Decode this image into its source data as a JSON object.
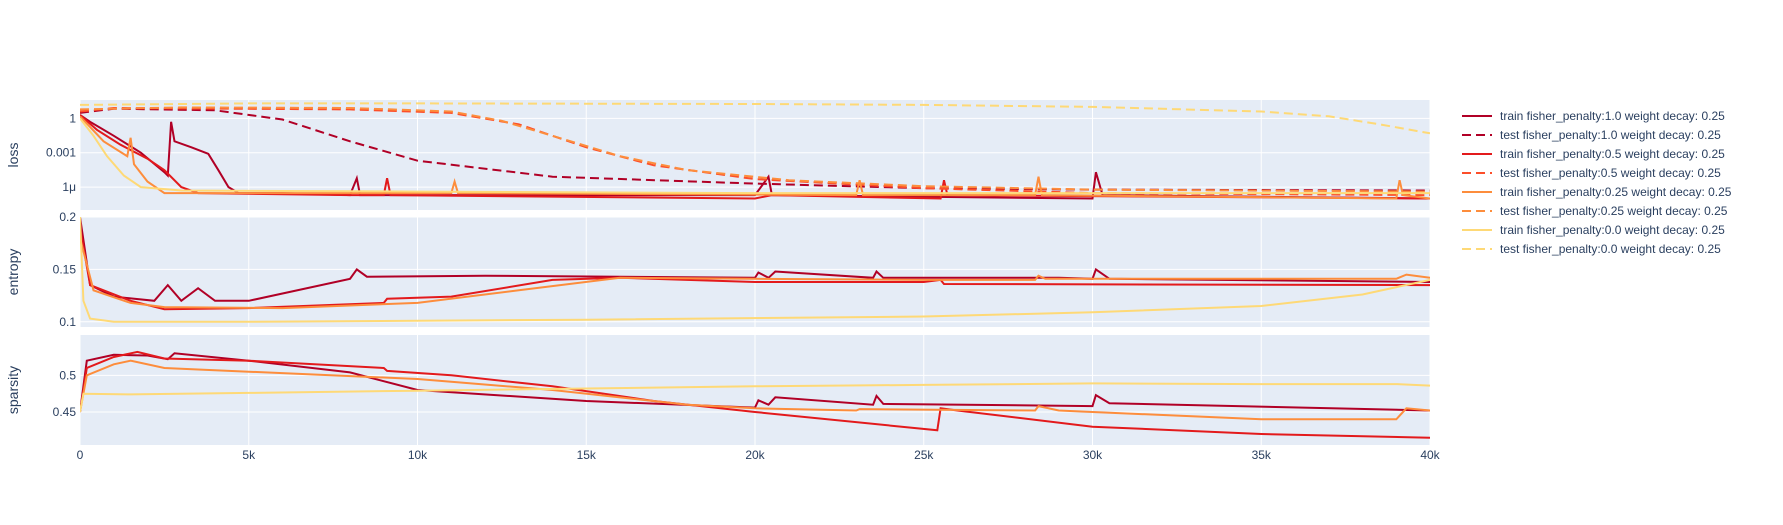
{
  "chart_data": {
    "type": "line",
    "x_ticks": [
      {
        "value": 0,
        "label": "0"
      },
      {
        "value": 5000,
        "label": "5k"
      },
      {
        "value": 10000,
        "label": "10k"
      },
      {
        "value": 15000,
        "label": "15k"
      },
      {
        "value": 20000,
        "label": "20k"
      },
      {
        "value": 25000,
        "label": "25k"
      },
      {
        "value": 30000,
        "label": "30k"
      },
      {
        "value": 35000,
        "label": "35k"
      },
      {
        "value": 40000,
        "label": "40k"
      }
    ],
    "xlim": [
      0,
      40000
    ],
    "grid": true,
    "legend_position": "right",
    "panels": [
      {
        "key": "loss",
        "ylabel": "loss",
        "yscale": "log",
        "ylim": [
          1e-08,
          40
        ],
        "y_ticks": [
          {
            "value": 1,
            "label": "1"
          },
          {
            "value": 0.001,
            "label": "0.001"
          },
          {
            "value": 1e-06,
            "label": "1μ"
          }
        ]
      },
      {
        "key": "entropy",
        "ylabel": "entropy",
        "yscale": "linear",
        "ylim": [
          0.095,
          0.2
        ],
        "y_ticks": [
          {
            "value": 0.2,
            "label": "0.2"
          },
          {
            "value": 0.15,
            "label": "0.15"
          },
          {
            "value": 0.1,
            "label": "0.1"
          }
        ]
      },
      {
        "key": "sparsity",
        "ylabel": "sparsity",
        "yscale": "linear",
        "ylim": [
          0.405,
          0.555
        ],
        "y_ticks": [
          {
            "value": 0.5,
            "label": "0.5"
          },
          {
            "value": 0.45,
            "label": "0.45"
          }
        ]
      }
    ],
    "series": [
      {
        "name": "train fisher_penalty:1.0 weight decay: 0.25",
        "color": "#b10026",
        "dash": "solid",
        "loss": [
          [
            0,
            2
          ],
          [
            300,
            0.5
          ],
          [
            1000,
            0.03
          ],
          [
            1800,
            0.001
          ],
          [
            2500,
            2e-05
          ],
          [
            2600,
            1e-05
          ],
          [
            2700,
            0.5
          ],
          [
            2800,
            0.01
          ],
          [
            3300,
            0.003
          ],
          [
            3800,
            0.0008
          ],
          [
            4100,
            3e-05
          ],
          [
            4400,
            1e-06
          ],
          [
            4700,
            3e-07
          ],
          [
            6000,
            3e-07
          ],
          [
            8000,
            2e-07
          ],
          [
            8200,
            6e-06
          ],
          [
            8300,
            2e-07
          ],
          [
            20000,
            2e-07
          ],
          [
            20400,
            8e-06
          ],
          [
            20500,
            2e-07
          ],
          [
            30000,
            1e-07
          ],
          [
            30100,
            2e-05
          ],
          [
            30300,
            2e-07
          ],
          [
            40000,
            1e-07
          ]
        ],
        "entropy": [
          [
            0,
            0.2
          ],
          [
            300,
            0.135
          ],
          [
            1000,
            0.124
          ],
          [
            2200,
            0.12
          ],
          [
            2600,
            0.135
          ],
          [
            3000,
            0.12
          ],
          [
            3500,
            0.132
          ],
          [
            4000,
            0.12
          ],
          [
            5000,
            0.12
          ],
          [
            8000,
            0.141
          ],
          [
            8200,
            0.15
          ],
          [
            8500,
            0.143
          ],
          [
            12000,
            0.144
          ],
          [
            20000,
            0.142
          ],
          [
            20100,
            0.147
          ],
          [
            20400,
            0.142
          ],
          [
            20600,
            0.148
          ],
          [
            23500,
            0.142
          ],
          [
            23600,
            0.148
          ],
          [
            23800,
            0.142
          ],
          [
            29000,
            0.142
          ],
          [
            30000,
            0.141
          ],
          [
            30100,
            0.15
          ],
          [
            30500,
            0.141
          ],
          [
            40000,
            0.138
          ]
        ],
        "sparsity": [
          [
            0,
            0.45
          ],
          [
            200,
            0.52
          ],
          [
            1000,
            0.528
          ],
          [
            2000,
            0.527
          ],
          [
            2600,
            0.522
          ],
          [
            2800,
            0.53
          ],
          [
            5000,
            0.52
          ],
          [
            8000,
            0.504
          ],
          [
            10000,
            0.48
          ],
          [
            15000,
            0.465
          ],
          [
            20000,
            0.456
          ],
          [
            20100,
            0.466
          ],
          [
            20400,
            0.46
          ],
          [
            20600,
            0.47
          ],
          [
            23500,
            0.46
          ],
          [
            23600,
            0.472
          ],
          [
            23800,
            0.461
          ],
          [
            30000,
            0.458
          ],
          [
            30100,
            0.473
          ],
          [
            30500,
            0.462
          ],
          [
            40000,
            0.452
          ]
        ]
      },
      {
        "name": "test fisher_penalty:1.0 weight decay: 0.25",
        "color": "#b10026",
        "dash": "dash",
        "loss": [
          [
            0,
            3
          ],
          [
            1000,
            7
          ],
          [
            4000,
            5
          ],
          [
            6000,
            0.8
          ],
          [
            8000,
            0.01
          ],
          [
            10000,
            0.0002
          ],
          [
            14000,
            8e-06
          ],
          [
            20000,
            2e-06
          ],
          [
            25000,
            8e-07
          ],
          [
            30000,
            6e-07
          ],
          [
            40000,
            5e-07
          ]
        ],
        "entropy": [],
        "sparsity": []
      },
      {
        "name": "train fisher_penalty:0.5 weight decay: 0.25",
        "color": "#e31a1c",
        "dash": "solid",
        "loss": [
          [
            0,
            2
          ],
          [
            500,
            0.1
          ],
          [
            1200,
            0.005
          ],
          [
            2000,
            0.0003
          ],
          [
            2500,
            3e-05
          ],
          [
            3000,
            1e-06
          ],
          [
            3500,
            3e-07
          ],
          [
            8000,
            2e-07
          ],
          [
            8500,
            2e-07
          ],
          [
            9000,
            2e-07
          ],
          [
            9100,
            6e-06
          ],
          [
            9200,
            2e-07
          ],
          [
            20000,
            1e-07
          ],
          [
            20500,
            2e-07
          ],
          [
            25500,
            1e-07
          ],
          [
            25600,
            4e-06
          ],
          [
            25700,
            2e-07
          ],
          [
            40000,
            1e-07
          ]
        ],
        "entropy": [
          [
            0,
            0.19
          ],
          [
            300,
            0.135
          ],
          [
            1500,
            0.12
          ],
          [
            2500,
            0.112
          ],
          [
            5000,
            0.113
          ],
          [
            9000,
            0.118
          ],
          [
            9100,
            0.122
          ],
          [
            11000,
            0.124
          ],
          [
            14000,
            0.14
          ],
          [
            16000,
            0.142
          ],
          [
            20000,
            0.138
          ],
          [
            25000,
            0.138
          ],
          [
            25500,
            0.14
          ],
          [
            25600,
            0.136
          ],
          [
            40000,
            0.135
          ]
        ],
        "sparsity": [
          [
            0,
            0.45
          ],
          [
            200,
            0.51
          ],
          [
            1000,
            0.525
          ],
          [
            1700,
            0.532
          ],
          [
            2500,
            0.523
          ],
          [
            5000,
            0.52
          ],
          [
            9000,
            0.51
          ],
          [
            9100,
            0.506
          ],
          [
            11000,
            0.5
          ],
          [
            14000,
            0.485
          ],
          [
            17000,
            0.465
          ],
          [
            20000,
            0.45
          ],
          [
            25400,
            0.425
          ],
          [
            25500,
            0.455
          ],
          [
            26000,
            0.452
          ],
          [
            30000,
            0.43
          ],
          [
            35000,
            0.42
          ],
          [
            40000,
            0.415
          ]
        ]
      },
      {
        "name": "test fisher_penalty:0.5 weight decay: 0.25",
        "color": "#fc4e2a",
        "dash": "dash",
        "loss": [
          [
            0,
            4
          ],
          [
            1000,
            8
          ],
          [
            8000,
            6
          ],
          [
            11000,
            3
          ],
          [
            13000,
            0.3
          ],
          [
            15000,
            0.003
          ],
          [
            17000,
            8e-05
          ],
          [
            20000,
            5e-06
          ],
          [
            25000,
            8e-07
          ],
          [
            30000,
            3e-07
          ],
          [
            40000,
            2e-07
          ]
        ],
        "entropy": [],
        "sparsity": []
      },
      {
        "name": "train fisher_penalty:0.25 weight decay: 0.25",
        "color": "#fd8d3c",
        "dash": "solid",
        "loss": [
          [
            0,
            1.5
          ],
          [
            700,
            0.01
          ],
          [
            1400,
            0.0005
          ],
          [
            1500,
            0.02
          ],
          [
            1600,
            0.0001
          ],
          [
            2000,
            3e-06
          ],
          [
            2500,
            3e-07
          ],
          [
            11000,
            3e-07
          ],
          [
            11100,
            3e-06
          ],
          [
            11200,
            3e-07
          ],
          [
            23000,
            2e-07
          ],
          [
            23100,
            4e-06
          ],
          [
            23200,
            2e-07
          ],
          [
            28300,
            2e-07
          ],
          [
            28400,
            8e-06
          ],
          [
            28500,
            2e-07
          ],
          [
            39000,
            1e-07
          ],
          [
            39100,
            4e-06
          ],
          [
            39200,
            2e-07
          ],
          [
            40000,
            1e-07
          ]
        ],
        "entropy": [
          [
            0,
            0.18
          ],
          [
            400,
            0.13
          ],
          [
            1500,
            0.118
          ],
          [
            2500,
            0.114
          ],
          [
            6000,
            0.113
          ],
          [
            10000,
            0.118
          ],
          [
            13000,
            0.13
          ],
          [
            16000,
            0.142
          ],
          [
            20000,
            0.141
          ],
          [
            25000,
            0.14
          ],
          [
            28300,
            0.14
          ],
          [
            28400,
            0.144
          ],
          [
            28600,
            0.141
          ],
          [
            39000,
            0.141
          ],
          [
            39300,
            0.145
          ],
          [
            40000,
            0.142
          ]
        ],
        "sparsity": [
          [
            0,
            0.45
          ],
          [
            200,
            0.5
          ],
          [
            1000,
            0.515
          ],
          [
            1500,
            0.52
          ],
          [
            2500,
            0.51
          ],
          [
            5000,
            0.505
          ],
          [
            10000,
            0.495
          ],
          [
            14000,
            0.48
          ],
          [
            18000,
            0.46
          ],
          [
            20000,
            0.455
          ],
          [
            23000,
            0.452
          ],
          [
            23100,
            0.454
          ],
          [
            28300,
            0.452
          ],
          [
            28400,
            0.458
          ],
          [
            29000,
            0.452
          ],
          [
            30000,
            0.45
          ],
          [
            35000,
            0.44
          ],
          [
            39000,
            0.44
          ],
          [
            39300,
            0.455
          ],
          [
            40000,
            0.452
          ]
        ]
      },
      {
        "name": "test fisher_penalty:0.25 weight decay: 0.25",
        "color": "#fd8d3c",
        "dash": "dash",
        "loss": [
          [
            0,
            6
          ],
          [
            3000,
            9
          ],
          [
            8000,
            8
          ],
          [
            11000,
            4
          ],
          [
            12500,
            0.6
          ],
          [
            14000,
            0.03
          ],
          [
            16000,
            0.0005
          ],
          [
            18000,
            3e-05
          ],
          [
            21000,
            4e-06
          ],
          [
            25000,
            1.2e-06
          ],
          [
            30000,
            6e-07
          ],
          [
            40000,
            4e-07
          ]
        ],
        "entropy": [],
        "sparsity": []
      },
      {
        "name": "train fisher_penalty:0.0 weight decay: 0.25",
        "color": "#fed976",
        "dash": "solid",
        "loss": [
          [
            0,
            1
          ],
          [
            400,
            0.03
          ],
          [
            800,
            0.0005
          ],
          [
            1300,
            1e-05
          ],
          [
            1800,
            1e-06
          ],
          [
            3000,
            5e-07
          ],
          [
            10000,
            4e-07
          ],
          [
            20000,
            3e-07
          ],
          [
            30000,
            3e-07
          ],
          [
            40000,
            3e-07
          ]
        ],
        "entropy": [
          [
            0,
            0.2
          ],
          [
            100,
            0.12
          ],
          [
            300,
            0.103
          ],
          [
            1000,
            0.1
          ],
          [
            5000,
            0.1
          ],
          [
            15000,
            0.102
          ],
          [
            25000,
            0.105
          ],
          [
            30000,
            0.109
          ],
          [
            35000,
            0.115
          ],
          [
            38000,
            0.126
          ],
          [
            40000,
            0.14
          ]
        ],
        "sparsity": [
          [
            0,
            0.45
          ],
          [
            100,
            0.475
          ],
          [
            1500,
            0.474
          ],
          [
            5000,
            0.476
          ],
          [
            10000,
            0.479
          ],
          [
            15000,
            0.482
          ],
          [
            20000,
            0.485
          ],
          [
            25000,
            0.487
          ],
          [
            30000,
            0.489
          ],
          [
            35000,
            0.488
          ],
          [
            39000,
            0.488
          ],
          [
            40000,
            0.486
          ]
        ]
      },
      {
        "name": "test fisher_penalty:0.0 weight decay: 0.25",
        "color": "#fed976",
        "dash": "dash",
        "loss": [
          [
            0,
            15
          ],
          [
            5000,
            20
          ],
          [
            10000,
            20
          ],
          [
            20000,
            18
          ],
          [
            25000,
            15
          ],
          [
            30000,
            10
          ],
          [
            35000,
            4
          ],
          [
            37000,
            1.5
          ],
          [
            38500,
            0.3
          ],
          [
            40000,
            0.05
          ]
        ],
        "entropy": [],
        "sparsity": []
      }
    ]
  }
}
